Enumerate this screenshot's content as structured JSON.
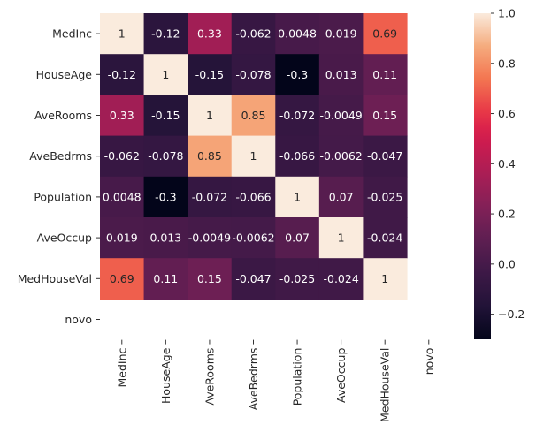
{
  "chart_data": {
    "type": "heatmap",
    "rows": [
      "MedInc",
      "HouseAge",
      "AveRooms",
      "AveBedrms",
      "Population",
      "AveOccup",
      "MedHouseVal",
      "novo"
    ],
    "columns": [
      "MedInc",
      "HouseAge",
      "AveRooms",
      "AveBedrms",
      "Population",
      "AveOccup",
      "MedHouseVal",
      "novo"
    ],
    "values": [
      [
        1,
        -0.12,
        0.33,
        -0.062,
        0.0048,
        0.019,
        0.69,
        null
      ],
      [
        -0.12,
        1,
        -0.15,
        -0.078,
        -0.3,
        0.013,
        0.11,
        null
      ],
      [
        0.33,
        -0.15,
        1,
        0.85,
        -0.072,
        -0.0049,
        0.15,
        null
      ],
      [
        -0.062,
        -0.078,
        0.85,
        1,
        -0.066,
        -0.0062,
        -0.047,
        null
      ],
      [
        0.0048,
        -0.3,
        -0.072,
        -0.066,
        1,
        0.07,
        -0.025,
        null
      ],
      [
        0.019,
        0.013,
        -0.0049,
        -0.0062,
        0.07,
        1,
        -0.024,
        null
      ],
      [
        0.69,
        0.11,
        0.15,
        -0.047,
        -0.025,
        -0.024,
        1,
        null
      ],
      [
        null,
        null,
        null,
        null,
        null,
        null,
        null,
        null
      ]
    ],
    "cell_labels": [
      [
        "1",
        "-0.12",
        "0.33",
        "-0.062",
        "0.0048",
        "0.019",
        "0.69",
        ""
      ],
      [
        "-0.12",
        "1",
        "-0.15",
        "-0.078",
        "-0.3",
        "0.013",
        "0.11",
        ""
      ],
      [
        "0.33",
        "-0.15",
        "1",
        "0.85",
        "-0.072",
        "-0.0049",
        "0.15",
        ""
      ],
      [
        "-0.062",
        "-0.078",
        "0.85",
        "1",
        "-0.066",
        "-0.0062",
        "-0.047",
        ""
      ],
      [
        "0.0048",
        "-0.3",
        "-0.072",
        "-0.066",
        "1",
        "0.07",
        "-0.025",
        ""
      ],
      [
        "0.019",
        "0.013",
        "-0.0049",
        "-0.0062",
        "0.07",
        "1",
        "-0.024",
        ""
      ],
      [
        "0.69",
        "0.11",
        "0.15",
        "-0.047",
        "-0.025",
        "-0.024",
        "1",
        ""
      ],
      [
        "",
        "",
        "",
        "",
        "",
        "",
        "",
        ""
      ]
    ],
    "colorbar": {
      "min": -0.3,
      "max": 1.0,
      "ticks": [
        -0.2,
        0.0,
        0.2,
        0.4,
        0.6,
        0.8,
        1.0
      ],
      "tick_labels": [
        "−0.2",
        "0.0",
        "0.2",
        "0.4",
        "0.6",
        "0.8",
        "1.0"
      ],
      "colormap": "rocket"
    },
    "title": "",
    "xlabel": "",
    "ylabel": ""
  }
}
